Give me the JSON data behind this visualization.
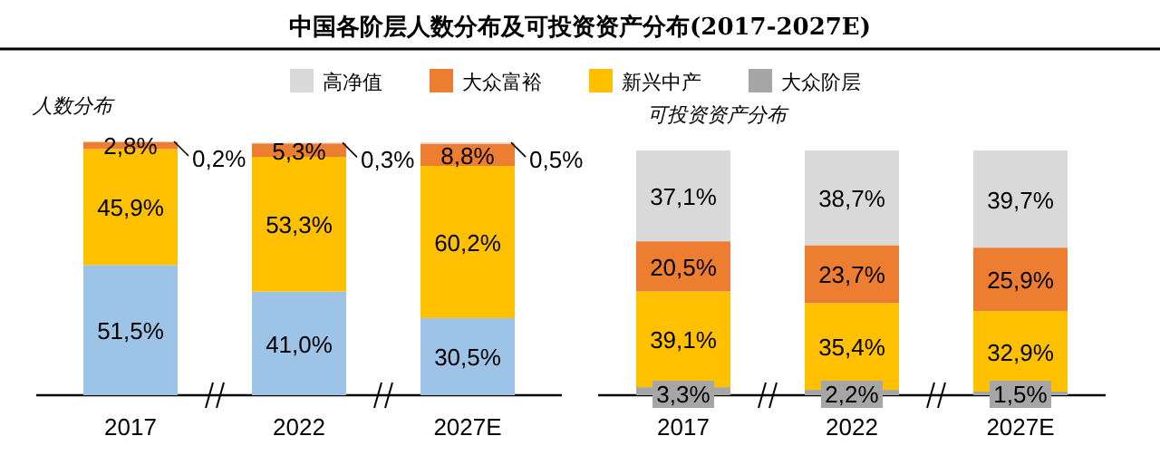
{
  "chart_data": [
    {
      "type": "bar",
      "stacked": true,
      "title": "中国各阶层人数分布及可投资资产分布(2017-2027E)",
      "subtitle": "人数分布",
      "categories": [
        "2017",
        "2022",
        "2027E"
      ],
      "series": [
        {
          "color": "#9dc3e6",
          "values": [
            51.5,
            41.0,
            30.5
          ],
          "value_labels": [
            "51,5%",
            "41,0%",
            "30,5%"
          ]
        },
        {
          "color": "#ffc000",
          "values": [
            45.9,
            53.3,
            60.2
          ],
          "value_labels": [
            "45,9%",
            "53,3%",
            "60,2%"
          ]
        },
        {
          "color": "#ed7d31",
          "values": [
            2.8,
            5.3,
            8.8
          ],
          "value_labels": [
            "2,8%",
            "5,3%",
            "8,8%"
          ]
        },
        {
          "color": "#d9d9d9",
          "values": [
            0.2,
            0.3,
            0.5
          ],
          "value_labels": [
            "0,2%",
            "0,3%",
            "0,5%"
          ]
        }
      ]
    },
    {
      "type": "bar",
      "stacked": true,
      "subtitle": "可投资资产分布",
      "legend": "top",
      "categories": [
        "2017",
        "2022",
        "2027E"
      ],
      "series": [
        {
          "name": "大众阶层",
          "color": "#a6a6a6",
          "values": [
            3.3,
            2.2,
            1.5
          ],
          "value_labels": [
            "3,3%",
            "2,2%",
            "1,5%"
          ]
        },
        {
          "name": "新兴中产",
          "color": "#ffc000",
          "values": [
            39.1,
            35.4,
            32.9
          ],
          "value_labels": [
            "39,1%",
            "35,4%",
            "32,9%"
          ]
        },
        {
          "name": "大众富裕",
          "color": "#ed7d31",
          "values": [
            20.5,
            23.7,
            25.9
          ],
          "value_labels": [
            "20,5%",
            "23,7%",
            "25,9%"
          ]
        },
        {
          "name": "高净值",
          "color": "#d9d9d9",
          "values": [
            37.1,
            38.7,
            39.7
          ],
          "value_labels": [
            "37,1%",
            "38,7%",
            "39,7%"
          ]
        }
      ]
    }
  ]
}
